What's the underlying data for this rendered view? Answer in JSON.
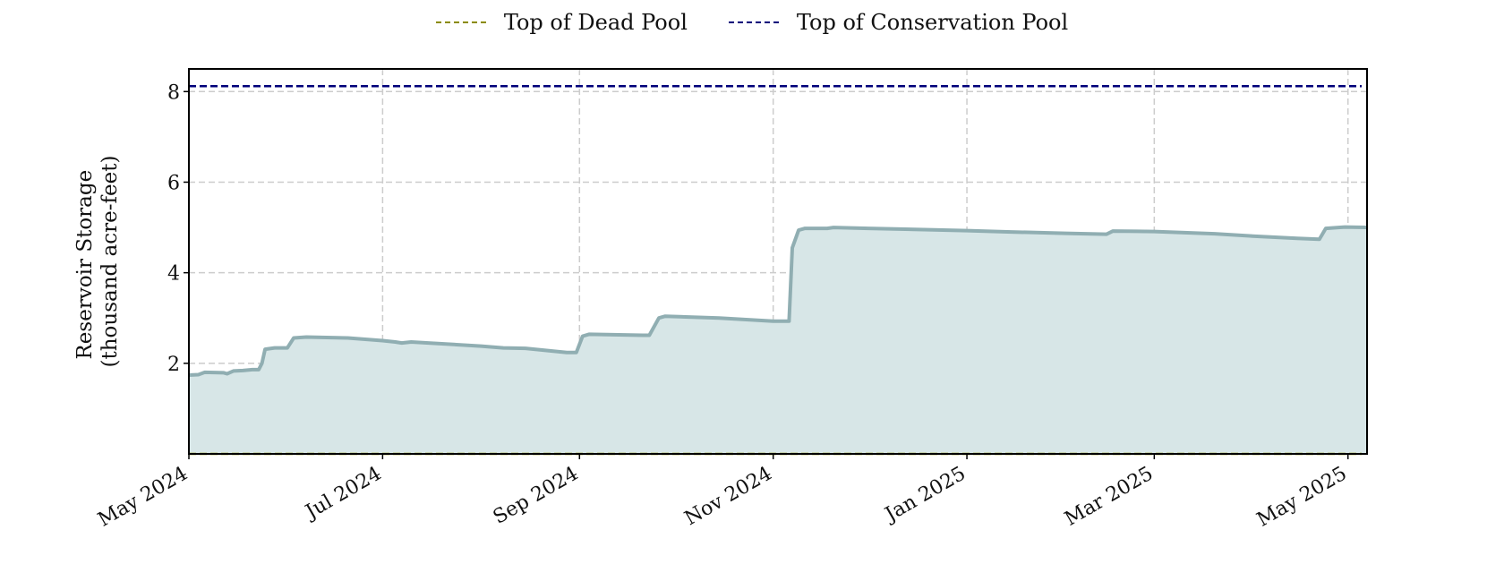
{
  "chart_data": {
    "type": "area",
    "ylabel_line1": "Reservoir Storage",
    "ylabel_line2": "(thousand acre-feet)",
    "xlim": [
      "2024-05-01",
      "2025-05-07"
    ],
    "ylim": [
      0,
      8.5
    ],
    "yticks": [
      2,
      4,
      6,
      8
    ],
    "xticks": [
      {
        "date": "2024-05-01",
        "label": "May 2024"
      },
      {
        "date": "2024-07-01",
        "label": "Jul 2024"
      },
      {
        "date": "2024-09-01",
        "label": "Sep 2024"
      },
      {
        "date": "2024-11-01",
        "label": "Nov 2024"
      },
      {
        "date": "2025-01-01",
        "label": "Jan 2025"
      },
      {
        "date": "2025-03-01",
        "label": "Mar 2025"
      },
      {
        "date": "2025-05-01",
        "label": "May 2025"
      }
    ],
    "grid": true,
    "legend_position": "top-center",
    "reference_lines": [
      {
        "name": "Top of Dead Pool",
        "value": 0,
        "color": "#8b8b00"
      },
      {
        "name": "Top of Conservation Pool",
        "value": 8.12,
        "color": "#00007a"
      }
    ],
    "series": [
      {
        "color": "#90aeb2",
        "fill_color": "#d7e6e7",
        "points": [
          [
            "2024-05-01",
            1.74
          ],
          [
            "2024-05-04",
            1.75
          ],
          [
            "2024-05-06",
            1.8
          ],
          [
            "2024-05-12",
            1.79
          ],
          [
            "2024-05-13",
            1.77
          ],
          [
            "2024-05-15",
            1.83
          ],
          [
            "2024-05-18",
            1.84
          ],
          [
            "2024-05-21",
            1.86
          ],
          [
            "2024-05-23",
            1.86
          ],
          [
            "2024-05-24",
            2.0
          ],
          [
            "2024-05-25",
            2.31
          ],
          [
            "2024-05-28",
            2.34
          ],
          [
            "2024-06-01",
            2.34
          ],
          [
            "2024-06-03",
            2.56
          ],
          [
            "2024-06-07",
            2.58
          ],
          [
            "2024-06-20",
            2.56
          ],
          [
            "2024-07-01",
            2.5
          ],
          [
            "2024-07-05",
            2.47
          ],
          [
            "2024-07-07",
            2.45
          ],
          [
            "2024-07-10",
            2.47
          ],
          [
            "2024-08-01",
            2.38
          ],
          [
            "2024-08-08",
            2.34
          ],
          [
            "2024-08-15",
            2.33
          ],
          [
            "2024-08-28",
            2.24
          ],
          [
            "2024-08-31",
            2.24
          ],
          [
            "2024-09-02",
            2.6
          ],
          [
            "2024-09-04",
            2.64
          ],
          [
            "2024-09-21",
            2.62
          ],
          [
            "2024-09-23",
            2.62
          ],
          [
            "2024-09-26",
            3.0
          ],
          [
            "2024-09-28",
            3.04
          ],
          [
            "2024-10-15",
            3.0
          ],
          [
            "2024-11-01",
            2.93
          ],
          [
            "2024-11-06",
            2.93
          ],
          [
            "2024-11-07",
            4.55
          ],
          [
            "2024-11-09",
            4.94
          ],
          [
            "2024-11-11",
            4.98
          ],
          [
            "2024-11-18",
            4.98
          ],
          [
            "2024-11-20",
            5.0
          ],
          [
            "2024-12-01",
            4.98
          ],
          [
            "2024-12-20",
            4.95
          ],
          [
            "2025-01-01",
            4.93
          ],
          [
            "2025-01-15",
            4.9
          ],
          [
            "2025-02-01",
            4.87
          ],
          [
            "2025-02-14",
            4.85
          ],
          [
            "2025-02-16",
            4.92
          ],
          [
            "2025-03-01",
            4.91
          ],
          [
            "2025-03-20",
            4.86
          ],
          [
            "2025-04-01",
            4.81
          ],
          [
            "2025-04-15",
            4.76
          ],
          [
            "2025-04-22",
            4.74
          ],
          [
            "2025-04-24",
            4.98
          ],
          [
            "2025-04-30",
            5.01
          ],
          [
            "2025-05-07",
            5.0
          ]
        ]
      }
    ]
  }
}
